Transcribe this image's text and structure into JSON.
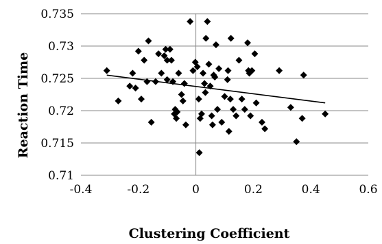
{
  "chart_data": {
    "type": "scatter",
    "title": "",
    "xlabel": "Clustering Coefficient",
    "ylabel": "Reaction Time",
    "xlim": [
      -0.4,
      0.6
    ],
    "ylim": [
      0.71,
      0.735
    ],
    "xticks": [
      -0.4,
      -0.2,
      0,
      0.2,
      0.4,
      0.6
    ],
    "xtick_labels": [
      "-0.4",
      "-0.2",
      "0",
      "0.2",
      "0.4",
      "0.6"
    ],
    "yticks": [
      0.71,
      0.715,
      0.72,
      0.725,
      0.73,
      0.735
    ],
    "ytick_labels": [
      "0.71",
      "0.715",
      "0.72",
      "0.725",
      "0.73",
      "0.735"
    ],
    "grid": "horizontal",
    "marker": "diamond",
    "marker_color": "#000000",
    "points": [
      [
        -0.31,
        0.7262
      ],
      [
        -0.27,
        0.7215
      ],
      [
        -0.23,
        0.7238
      ],
      [
        -0.22,
        0.7258
      ],
      [
        -0.21,
        0.7235
      ],
      [
        -0.2,
        0.7292
      ],
      [
        -0.19,
        0.7218
      ],
      [
        -0.18,
        0.7278
      ],
      [
        -0.17,
        0.7245
      ],
      [
        -0.165,
        0.7308
      ],
      [
        -0.155,
        0.7182
      ],
      [
        -0.14,
        0.7245
      ],
      [
        -0.13,
        0.7288
      ],
      [
        -0.12,
        0.7258
      ],
      [
        -0.11,
        0.7285
      ],
      [
        -0.105,
        0.7295
      ],
      [
        -0.1,
        0.7278
      ],
      [
        -0.1,
        0.7248
      ],
      [
        -0.09,
        0.7295
      ],
      [
        -0.085,
        0.7278
      ],
      [
        -0.08,
        0.7245
      ],
      [
        -0.075,
        0.7195
      ],
      [
        -0.072,
        0.7202
      ],
      [
        -0.068,
        0.7188
      ],
      [
        -0.065,
        0.7198
      ],
      [
        -0.06,
        0.7258
      ],
      [
        -0.05,
        0.7225
      ],
      [
        -0.045,
        0.7215
      ],
      [
        -0.04,
        0.7242
      ],
      [
        -0.035,
        0.7178
      ],
      [
        -0.02,
        0.7338
      ],
      [
        -0.01,
        0.7262
      ],
      [
        -0.002,
        0.7275
      ],
      [
        0.005,
        0.7268
      ],
      [
        0.01,
        0.7218
      ],
      [
        0.012,
        0.7135
      ],
      [
        0.015,
        0.7188
      ],
      [
        0.02,
        0.7195
      ],
      [
        0.025,
        0.7258
      ],
      [
        0.03,
        0.7242
      ],
      [
        0.033,
        0.7228
      ],
      [
        0.035,
        0.7312
      ],
      [
        0.04,
        0.7338
      ],
      [
        0.045,
        0.7272
      ],
      [
        0.05,
        0.7238
      ],
      [
        0.055,
        0.7192
      ],
      [
        0.058,
        0.7178
      ],
      [
        0.062,
        0.7255
      ],
      [
        0.066,
        0.7252
      ],
      [
        0.07,
        0.7302
      ],
      [
        0.075,
        0.7202
      ],
      [
        0.08,
        0.7265
      ],
      [
        0.09,
        0.7182
      ],
      [
        0.1,
        0.7222
      ],
      [
        0.11,
        0.7248
      ],
      [
        0.112,
        0.7262
      ],
      [
        0.115,
        0.7168
      ],
      [
        0.12,
        0.7218
      ],
      [
        0.122,
        0.7312
      ],
      [
        0.13,
        0.7202
      ],
      [
        0.14,
        0.7192
      ],
      [
        0.15,
        0.7278
      ],
      [
        0.16,
        0.7218
      ],
      [
        0.17,
        0.7202
      ],
      [
        0.18,
        0.7305
      ],
      [
        0.183,
        0.7262
      ],
      [
        0.186,
        0.7258
      ],
      [
        0.19,
        0.7192
      ],
      [
        0.195,
        0.7262
      ],
      [
        0.205,
        0.7288
      ],
      [
        0.21,
        0.7212
      ],
      [
        0.23,
        0.7182
      ],
      [
        0.24,
        0.7172
      ],
      [
        0.29,
        0.7262
      ],
      [
        0.33,
        0.7205
      ],
      [
        0.35,
        0.7152
      ],
      [
        0.37,
        0.7188
      ],
      [
        0.375,
        0.7255
      ],
      [
        0.45,
        0.7195
      ]
    ],
    "trendline": {
      "x": [
        -0.31,
        0.45
      ],
      "y": [
        0.7255,
        0.7212
      ]
    }
  }
}
